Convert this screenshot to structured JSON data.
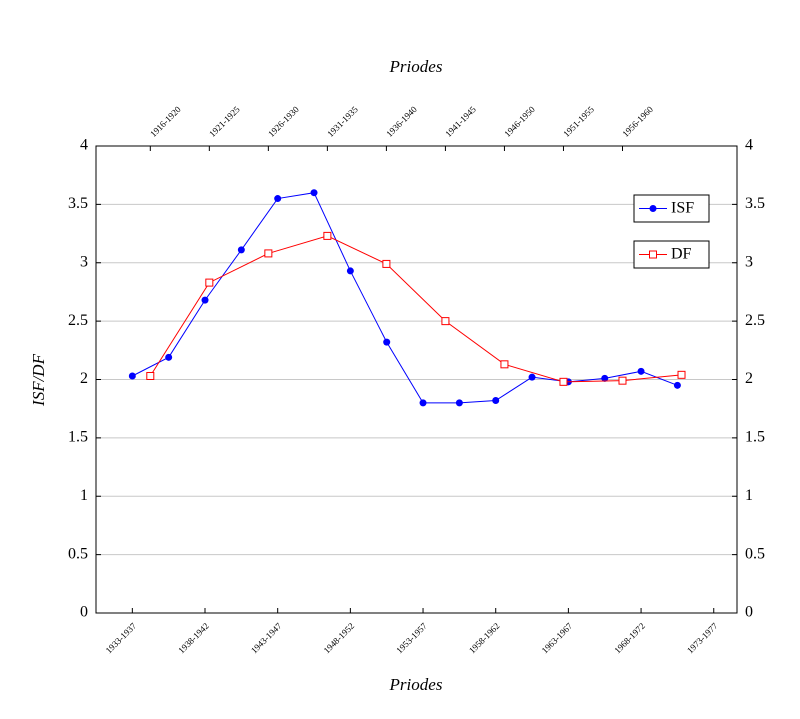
{
  "chart_data": {
    "type": "line",
    "x_label": "Priodes",
    "x2_label": "Priodes",
    "y_label": "ISF/DF",
    "xlim": [
      1932.5,
      1976.6
    ],
    "xticks": [
      {
        "value": 1935,
        "label": "1933-1937"
      },
      {
        "value": 1940,
        "label": "1938-1942"
      },
      {
        "value": 1945,
        "label": "1943-1947"
      },
      {
        "value": 1950,
        "label": "1948-1952"
      },
      {
        "value": 1955,
        "label": "1953-1957"
      },
      {
        "value": 1960,
        "label": "1958-1962"
      },
      {
        "value": 1965,
        "label": "1963-1967"
      },
      {
        "value": 1970,
        "label": "1968-1972"
      },
      {
        "value": 1975,
        "label": "1973-1977"
      }
    ],
    "x2lim": [
      1913.4,
      1967.7
    ],
    "x2ticks": [
      {
        "value": 1918,
        "label": "1916-1920"
      },
      {
        "value": 1923,
        "label": "1921-1925"
      },
      {
        "value": 1928,
        "label": "1926-1930"
      },
      {
        "value": 1933,
        "label": "1931-1935"
      },
      {
        "value": 1938,
        "label": "1936-1940"
      },
      {
        "value": 1943,
        "label": "1941-1945"
      },
      {
        "value": 1948,
        "label": "1946-1950"
      },
      {
        "value": 1953,
        "label": "1951-1955"
      },
      {
        "value": 1958,
        "label": "1956-1960"
      }
    ],
    "ylim": [
      0,
      4
    ],
    "yticks": [
      0,
      0.5,
      1,
      1.5,
      2,
      2.5,
      3,
      3.5,
      4
    ],
    "grid": true,
    "legend": "upper right",
    "series": [
      {
        "name": "ISF",
        "color": "#0000ff",
        "marker": "circle",
        "x": [
          1935,
          1937.5,
          1940,
          1942.5,
          1945,
          1947.5,
          1950,
          1952.5,
          1955,
          1957.5,
          1960,
          1962.5,
          1965,
          1967.5,
          1970,
          1972.5
        ],
        "values": [
          2.03,
          2.19,
          2.68,
          3.11,
          3.55,
          3.6,
          2.93,
          2.32,
          1.8,
          1.8,
          1.82,
          2.02,
          1.98,
          2.01,
          2.07,
          1.95
        ]
      },
      {
        "name": "DF",
        "color": "#ff0000",
        "marker": "square",
        "axis": "x2",
        "x": [
          1918,
          1923,
          1928,
          1933,
          1938,
          1943,
          1948,
          1953,
          1958,
          1963
        ],
        "values": [
          2.03,
          2.83,
          3.08,
          3.23,
          2.99,
          2.5,
          2.13,
          1.98,
          1.99,
          2.04
        ]
      }
    ]
  }
}
